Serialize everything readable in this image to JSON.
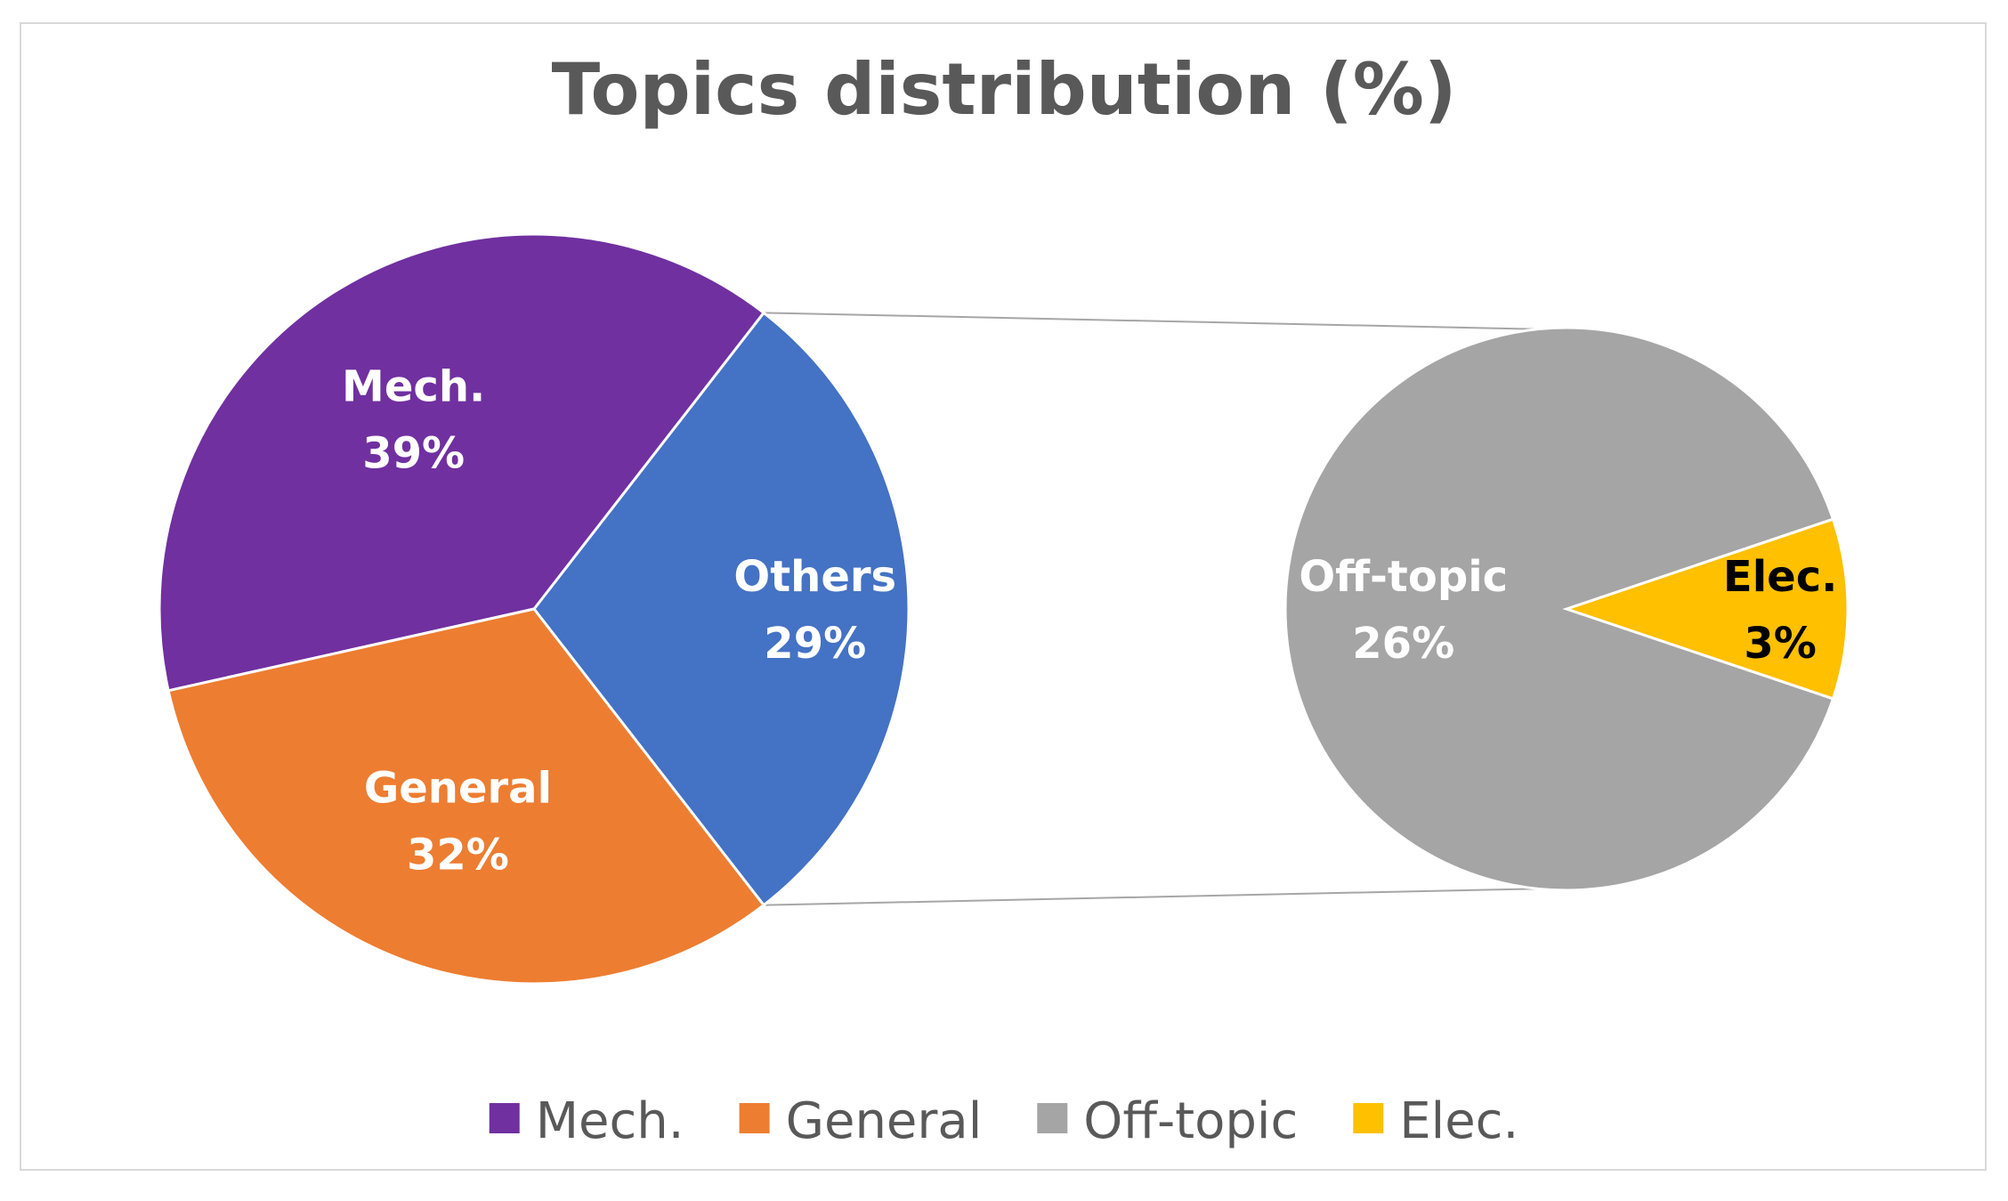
{
  "chart_data": {
    "type": "pie",
    "subtype": "pie-of-pie",
    "title": "Topics distribution (%)",
    "main_pie": {
      "slices": [
        {
          "key": "others",
          "label": "Others",
          "value": 29,
          "value_label": "29%",
          "color": "#4472c4",
          "label_color": "#ffffff"
        },
        {
          "key": "mech",
          "label": "Mech.",
          "value": 39,
          "value_label": "39%",
          "color": "#7030a0",
          "label_color": "#ffffff"
        },
        {
          "key": "general",
          "label": "General",
          "value": 32,
          "value_label": "32%",
          "color": "#ed7d31",
          "label_color": "#ffffff"
        }
      ]
    },
    "secondary_pie": {
      "breakdown_of": "Others",
      "slices": [
        {
          "key": "elec",
          "label": "Elec.",
          "value": 3,
          "value_label": "3%",
          "color": "#ffc000",
          "label_color": "#000000"
        },
        {
          "key": "offtopic",
          "label": "Off-topic",
          "value": 26,
          "value_label": "26%",
          "color": "#a5a5a5",
          "label_color": "#ffffff"
        }
      ]
    },
    "legend": {
      "position": "bottom",
      "entries": [
        {
          "label": "Mech.",
          "color": "#7030a0"
        },
        {
          "label": "General",
          "color": "#ed7d31"
        },
        {
          "label": "Off-topic",
          "color": "#a5a5a5"
        },
        {
          "label": "Elec.",
          "color": "#ffc000"
        }
      ]
    }
  }
}
